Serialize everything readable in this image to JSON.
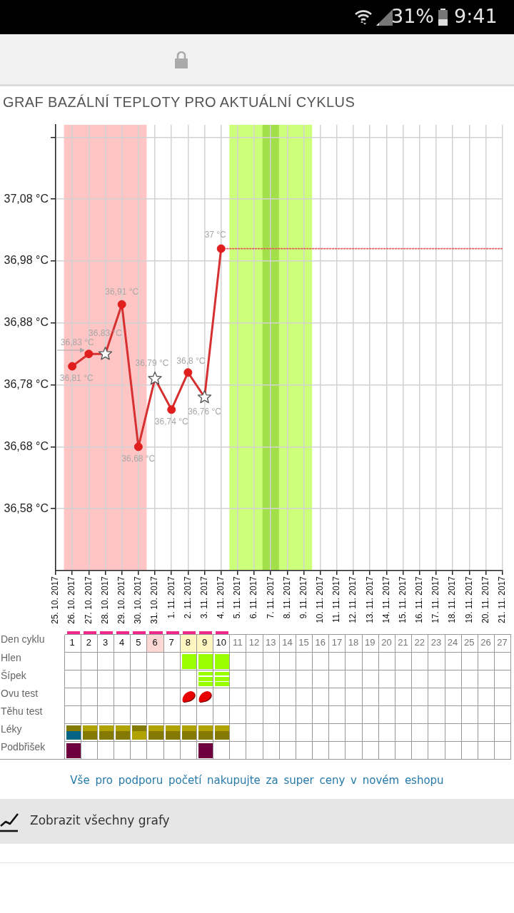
{
  "chart_data": [
    {
      "type": "line",
      "title": "GRAF BAZÁLNÍ TEPLOTY PRO AKTUÁLNÍ CYKLUS",
      "categories": [
        "25. 10. 2017",
        "26. 10. 2017",
        "27. 10. 2017",
        "28. 10. 2017",
        "29. 10. 2017",
        "30. 10. 2017",
        "31. 10. 2017",
        "1. 11. 2017",
        "2. 11. 2017",
        "3. 11. 2017",
        "4. 11. 2017",
        "5. 11. 2017",
        "6. 11. 2017",
        "7. 11. 2017",
        "8. 11. 2017",
        "9. 11. 2017",
        "10. 11. 2017",
        "11. 11. 2017",
        "12. 11. 2017",
        "13. 11. 2017",
        "14. 11. 2017",
        "15. 11. 2017",
        "16. 11. 2017",
        "17. 11. 2017",
        "18. 11. 2017",
        "19. 11. 2017",
        "20. 11. 2017",
        "21. 11. 2017"
      ],
      "series": [
        {
          "type": "line",
          "color": "#d63031",
          "marker": "none",
          "line_style": "solid",
          "values": [
            null,
            36.81,
            36.83,
            36.83,
            36.91,
            36.68,
            36.79,
            36.74,
            36.8,
            36.76,
            37,
            null,
            null,
            null,
            null,
            null,
            null,
            null,
            null,
            null,
            null,
            null,
            null,
            null,
            null,
            null,
            null,
            null
          ]
        },
        {
          "type": "line",
          "color": "#e35b5b",
          "marker": "none",
          "line_style": "dotted",
          "values": [
            null,
            null,
            null,
            null,
            null,
            null,
            null,
            null,
            null,
            null,
            37,
            37,
            37,
            37,
            37,
            37,
            37,
            37,
            37,
            37,
            37,
            37,
            37,
            37,
            37,
            37,
            37,
            37
          ]
        },
        {
          "type": "scatter",
          "color": "#e01e1e",
          "marker": "circle",
          "values": [
            null,
            36.81,
            36.83,
            null,
            36.91,
            36.68,
            null,
            36.74,
            36.8,
            null,
            37,
            null,
            null,
            null,
            null,
            null,
            null,
            null,
            null,
            null,
            null,
            null,
            null,
            null,
            null,
            null,
            null,
            null
          ],
          "value_labels": [
            null,
            "36,81 °C",
            "36,83 °C",
            null,
            "36,91 °C",
            "36,68 °C",
            null,
            "36,74 °C",
            "36,8 °C",
            null,
            "37 °C",
            null,
            null,
            null,
            null,
            null,
            null,
            null,
            null,
            null,
            null,
            null,
            null,
            null,
            null,
            null,
            null,
            null
          ]
        },
        {
          "type": "scatter",
          "color": "#ffffff",
          "marker": "star",
          "values": [
            null,
            null,
            null,
            36.83,
            null,
            null,
            36.79,
            null,
            null,
            36.76,
            null,
            null,
            null,
            null,
            null,
            null,
            null,
            null,
            null,
            null,
            null,
            null,
            null,
            null,
            null,
            null,
            null,
            null
          ],
          "value_labels": [
            null,
            null,
            null,
            "36,83 °C",
            null,
            null,
            "36,79 °C",
            null,
            null,
            "36,76 °C",
            null,
            null,
            null,
            null,
            null,
            null,
            null,
            null,
            null,
            null,
            null,
            null,
            null,
            null,
            null,
            null,
            null,
            null
          ]
        }
      ],
      "ylim": [
        36.48,
        37.2
      ],
      "yticks": [
        {
          "value": 36.58,
          "label": "36,58 °C"
        },
        {
          "value": 36.68,
          "label": "36,68 °C"
        },
        {
          "value": 36.78,
          "label": "36,78 °C"
        },
        {
          "value": 36.88,
          "label": "36,88 °C"
        },
        {
          "value": 36.98,
          "label": "36,98 °C"
        },
        {
          "value": 37.08,
          "label": "37,08 °C"
        },
        {
          "value": 37.18,
          "label": null
        }
      ],
      "x2label": "Den cyklu",
      "x2lim": [
        0,
        27
      ],
      "x2ticks": [
        1,
        2,
        3,
        4,
        5,
        6,
        7,
        8,
        9,
        10,
        11,
        12,
        13,
        14,
        15,
        16,
        17,
        18,
        19,
        20,
        21,
        22,
        23,
        24,
        25,
        26,
        27
      ],
      "grid": true,
      "bands": [
        {
          "axis": "x",
          "from": "26. 10. 2017",
          "to": "30. 10. 2017",
          "color": "#ffc4c4"
        },
        {
          "axis": "x",
          "from": "5. 11. 2017",
          "to": "9. 11. 2017",
          "color": "#ccff7a"
        },
        {
          "axis": "x",
          "from": "7. 11. 2017",
          "to": "7. 11. 2017",
          "color": "#a2e04a"
        }
      ],
      "annotations": [
        "31%",
        "9:41",
        "Vše pro podporu početí nakupujte za super ceny v novém eshopu",
        "Zobrazit všechny grafy"
      ]
    },
    {
      "type": "other",
      "y_categories": [
        "Hlen",
        "Šípek",
        "Ovu test",
        "Těhu test",
        "Léky",
        "Podbřišek"
      ]
    }
  ]
}
